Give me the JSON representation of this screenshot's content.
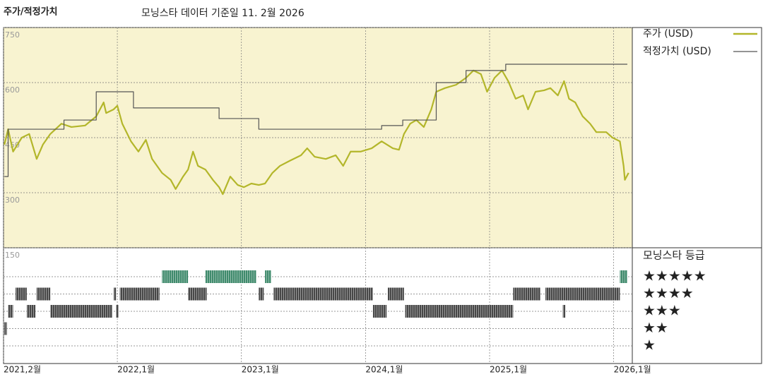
{
  "chart_data": {
    "type": "line",
    "title": "주가/적정가치",
    "subtitle": "모닝스타 데이터 기준일 11. 2월 2026",
    "xlim": [
      2021.083,
      2026.15
    ],
    "xticks": [
      {
        "value": 2021.083,
        "label": "2021,2월"
      },
      {
        "value": 2022,
        "label": "2022,1월"
      },
      {
        "value": 2023,
        "label": "2023,1월"
      },
      {
        "value": 2024,
        "label": "2024,1월"
      },
      {
        "value": 2025,
        "label": "2025,1월"
      },
      {
        "value": 2026,
        "label": "2026,1월"
      }
    ],
    "ylim": [
      150,
      750
    ],
    "yticks": [
      150,
      300,
      450,
      600,
      750
    ],
    "grid": true,
    "series": [
      {
        "name": "주가 (USD)",
        "color": "#b3b62a",
        "x": [
          2021.09,
          2021.12,
          2021.16,
          2021.23,
          2021.29,
          2021.35,
          2021.4,
          2021.46,
          2021.55,
          2021.63,
          2021.74,
          2021.83,
          2021.89,
          2021.91,
          2021.97,
          2022.0,
          2022.04,
          2022.11,
          2022.17,
          2022.23,
          2022.28,
          2022.36,
          2022.43,
          2022.47,
          2022.53,
          2022.57,
          2022.61,
          2022.65,
          2022.71,
          2022.77,
          2022.82,
          2022.85,
          2022.91,
          2022.97,
          2023.02,
          2023.08,
          2023.14,
          2023.19,
          2023.25,
          2023.31,
          2023.39,
          2023.48,
          2023.53,
          2023.59,
          2023.68,
          2023.76,
          2023.82,
          2023.88,
          2023.96,
          2024.05,
          2024.13,
          2024.22,
          2024.27,
          2024.31,
          2024.36,
          2024.41,
          2024.47,
          2024.53,
          2024.57,
          2024.64,
          2024.73,
          2024.81,
          2024.87,
          2024.93,
          2024.98,
          2025.04,
          2025.1,
          2025.15,
          2025.21,
          2025.27,
          2025.31,
          2025.37,
          2025.44,
          2025.49,
          2025.55,
          2025.6,
          2025.64,
          2025.69,
          2025.75,
          2025.81,
          2025.86,
          2025.94,
          2025.99,
          2026.05,
          2026.08,
          2026.09,
          2026.12
        ],
        "values": [
          431,
          473,
          412,
          450,
          460,
          392,
          431,
          460,
          488,
          479,
          483,
          508,
          546,
          517,
          527,
          537,
          488,
          440,
          412,
          444,
          392,
          354,
          335,
          310,
          344,
          363,
          412,
          373,
          363,
          335,
          315,
          296,
          344,
          321,
          315,
          325,
          321,
          325,
          354,
          373,
          387,
          402,
          421,
          398,
          392,
          402,
          373,
          412,
          412,
          421,
          440,
          421,
          417,
          460,
          488,
          498,
          479,
          527,
          575,
          585,
          594,
          613,
          633,
          623,
          575,
          613,
          633,
          604,
          556,
          565,
          527,
          575,
          579,
          585,
          565,
          604,
          556,
          546,
          508,
          488,
          465,
          465,
          450,
          440,
          373,
          335,
          354
        ]
      },
      {
        "name": "적정가치 (USD)",
        "color": "#555555",
        "step": true,
        "x": [
          2021.09,
          2021.12,
          2021.57,
          2021.83,
          2022.13,
          2022.82,
          2023.14,
          2024.13,
          2024.3,
          2024.57,
          2024.81,
          2025.13,
          2026.11
        ],
        "values": [
          344,
          473,
          498,
          575,
          531,
          502,
          473,
          483,
          498,
          600,
          633,
          650,
          650
        ]
      }
    ],
    "rating_title": "모닝스타 등급",
    "rating_labels": [
      "★★★★★",
      "★★★★",
      "★★★",
      "★★",
      "★"
    ],
    "rating_colors": [
      "#3f8a6c",
      "#474747",
      "#474747",
      "#474747",
      "#474747"
    ],
    "ratings": [
      {
        "stars": 5,
        "start": 2022.36,
        "end": 2022.57
      },
      {
        "stars": 5,
        "start": 2022.71,
        "end": 2023.12
      },
      {
        "stars": 5,
        "start": 2023.19,
        "end": 2023.24
      },
      {
        "stars": 5,
        "start": 2026.05,
        "end": 2026.11
      },
      {
        "stars": 4,
        "start": 2021.18,
        "end": 2021.27
      },
      {
        "stars": 4,
        "start": 2021.35,
        "end": 2021.46
      },
      {
        "stars": 4,
        "start": 2021.97,
        "end": 2021.99
      },
      {
        "stars": 4,
        "start": 2022.02,
        "end": 2022.34
      },
      {
        "stars": 4,
        "start": 2022.57,
        "end": 2022.72
      },
      {
        "stars": 4,
        "start": 2023.14,
        "end": 2023.18
      },
      {
        "stars": 4,
        "start": 2023.26,
        "end": 2024.06
      },
      {
        "stars": 4,
        "start": 2024.18,
        "end": 2024.31
      },
      {
        "stars": 4,
        "start": 2025.19,
        "end": 2025.41
      },
      {
        "stars": 4,
        "start": 2025.45,
        "end": 2026.05
      },
      {
        "stars": 3,
        "start": 2021.12,
        "end": 2021.16
      },
      {
        "stars": 3,
        "start": 2021.27,
        "end": 2021.34
      },
      {
        "stars": 3,
        "start": 2021.46,
        "end": 2021.96
      },
      {
        "stars": 3,
        "start": 2021.99,
        "end": 2022.01
      },
      {
        "stars": 3,
        "start": 2024.06,
        "end": 2024.17
      },
      {
        "stars": 3,
        "start": 2024.32,
        "end": 2025.19
      },
      {
        "stars": 3,
        "start": 2025.59,
        "end": 2025.61
      },
      {
        "stars": 2,
        "start": 2021.09,
        "end": 2021.11
      }
    ]
  }
}
